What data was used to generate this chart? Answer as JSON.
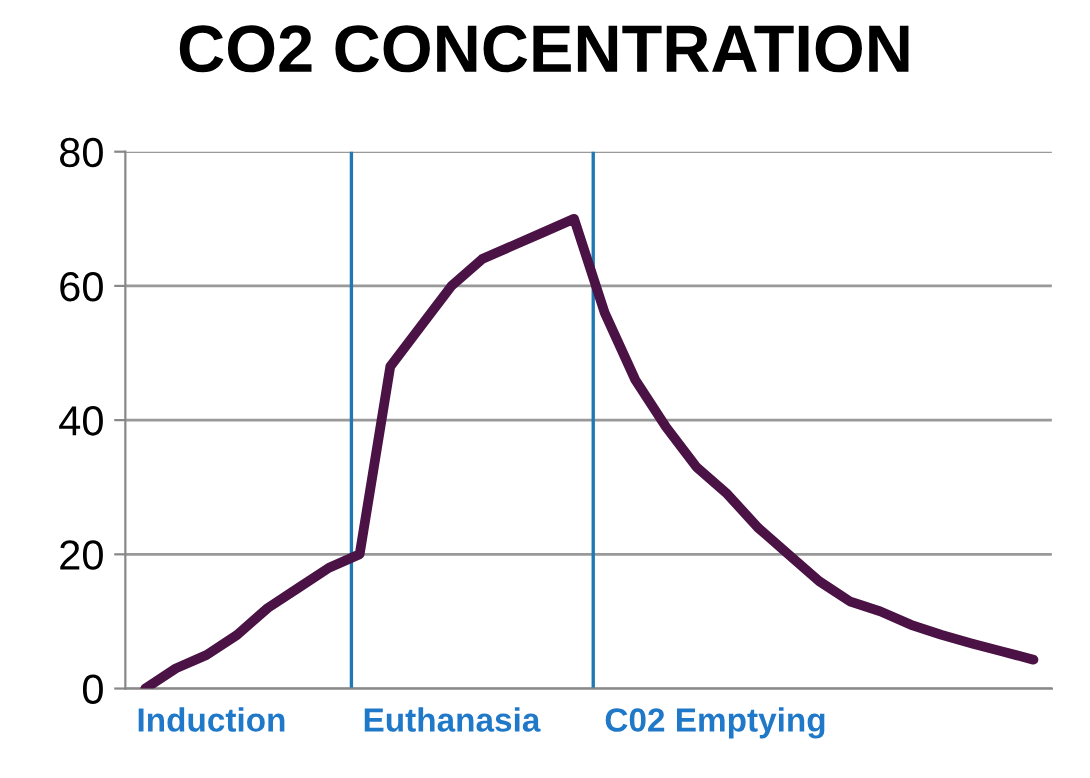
{
  "chart_data": {
    "type": "line",
    "title": "CO2 CONCENTRATION",
    "categories": [
      null,
      null,
      null,
      null,
      null,
      null,
      null,
      null,
      null,
      null,
      null,
      null,
      null,
      null,
      null,
      null,
      null,
      null,
      null,
      null,
      null,
      null,
      null,
      null,
      null,
      null,
      null,
      null,
      null,
      null
    ],
    "series": [
      {
        "color": "#4a1245",
        "values": [
          0,
          3,
          5,
          8,
          12,
          15,
          18,
          20,
          48,
          54,
          60,
          64,
          66,
          68,
          70,
          56,
          46,
          39,
          33,
          29,
          24,
          20,
          16,
          13,
          11.5,
          9.5,
          8,
          6.7,
          5.5,
          4.3
        ]
      }
    ],
    "ylim": [
      0,
      80
    ],
    "yticks": [
      0,
      20,
      40,
      60,
      80
    ],
    "grid": "y",
    "line_style": "solid",
    "marker": "none",
    "annotations": [
      "Induction",
      "Euthanasia",
      "C02 Emptying"
    ]
  }
}
